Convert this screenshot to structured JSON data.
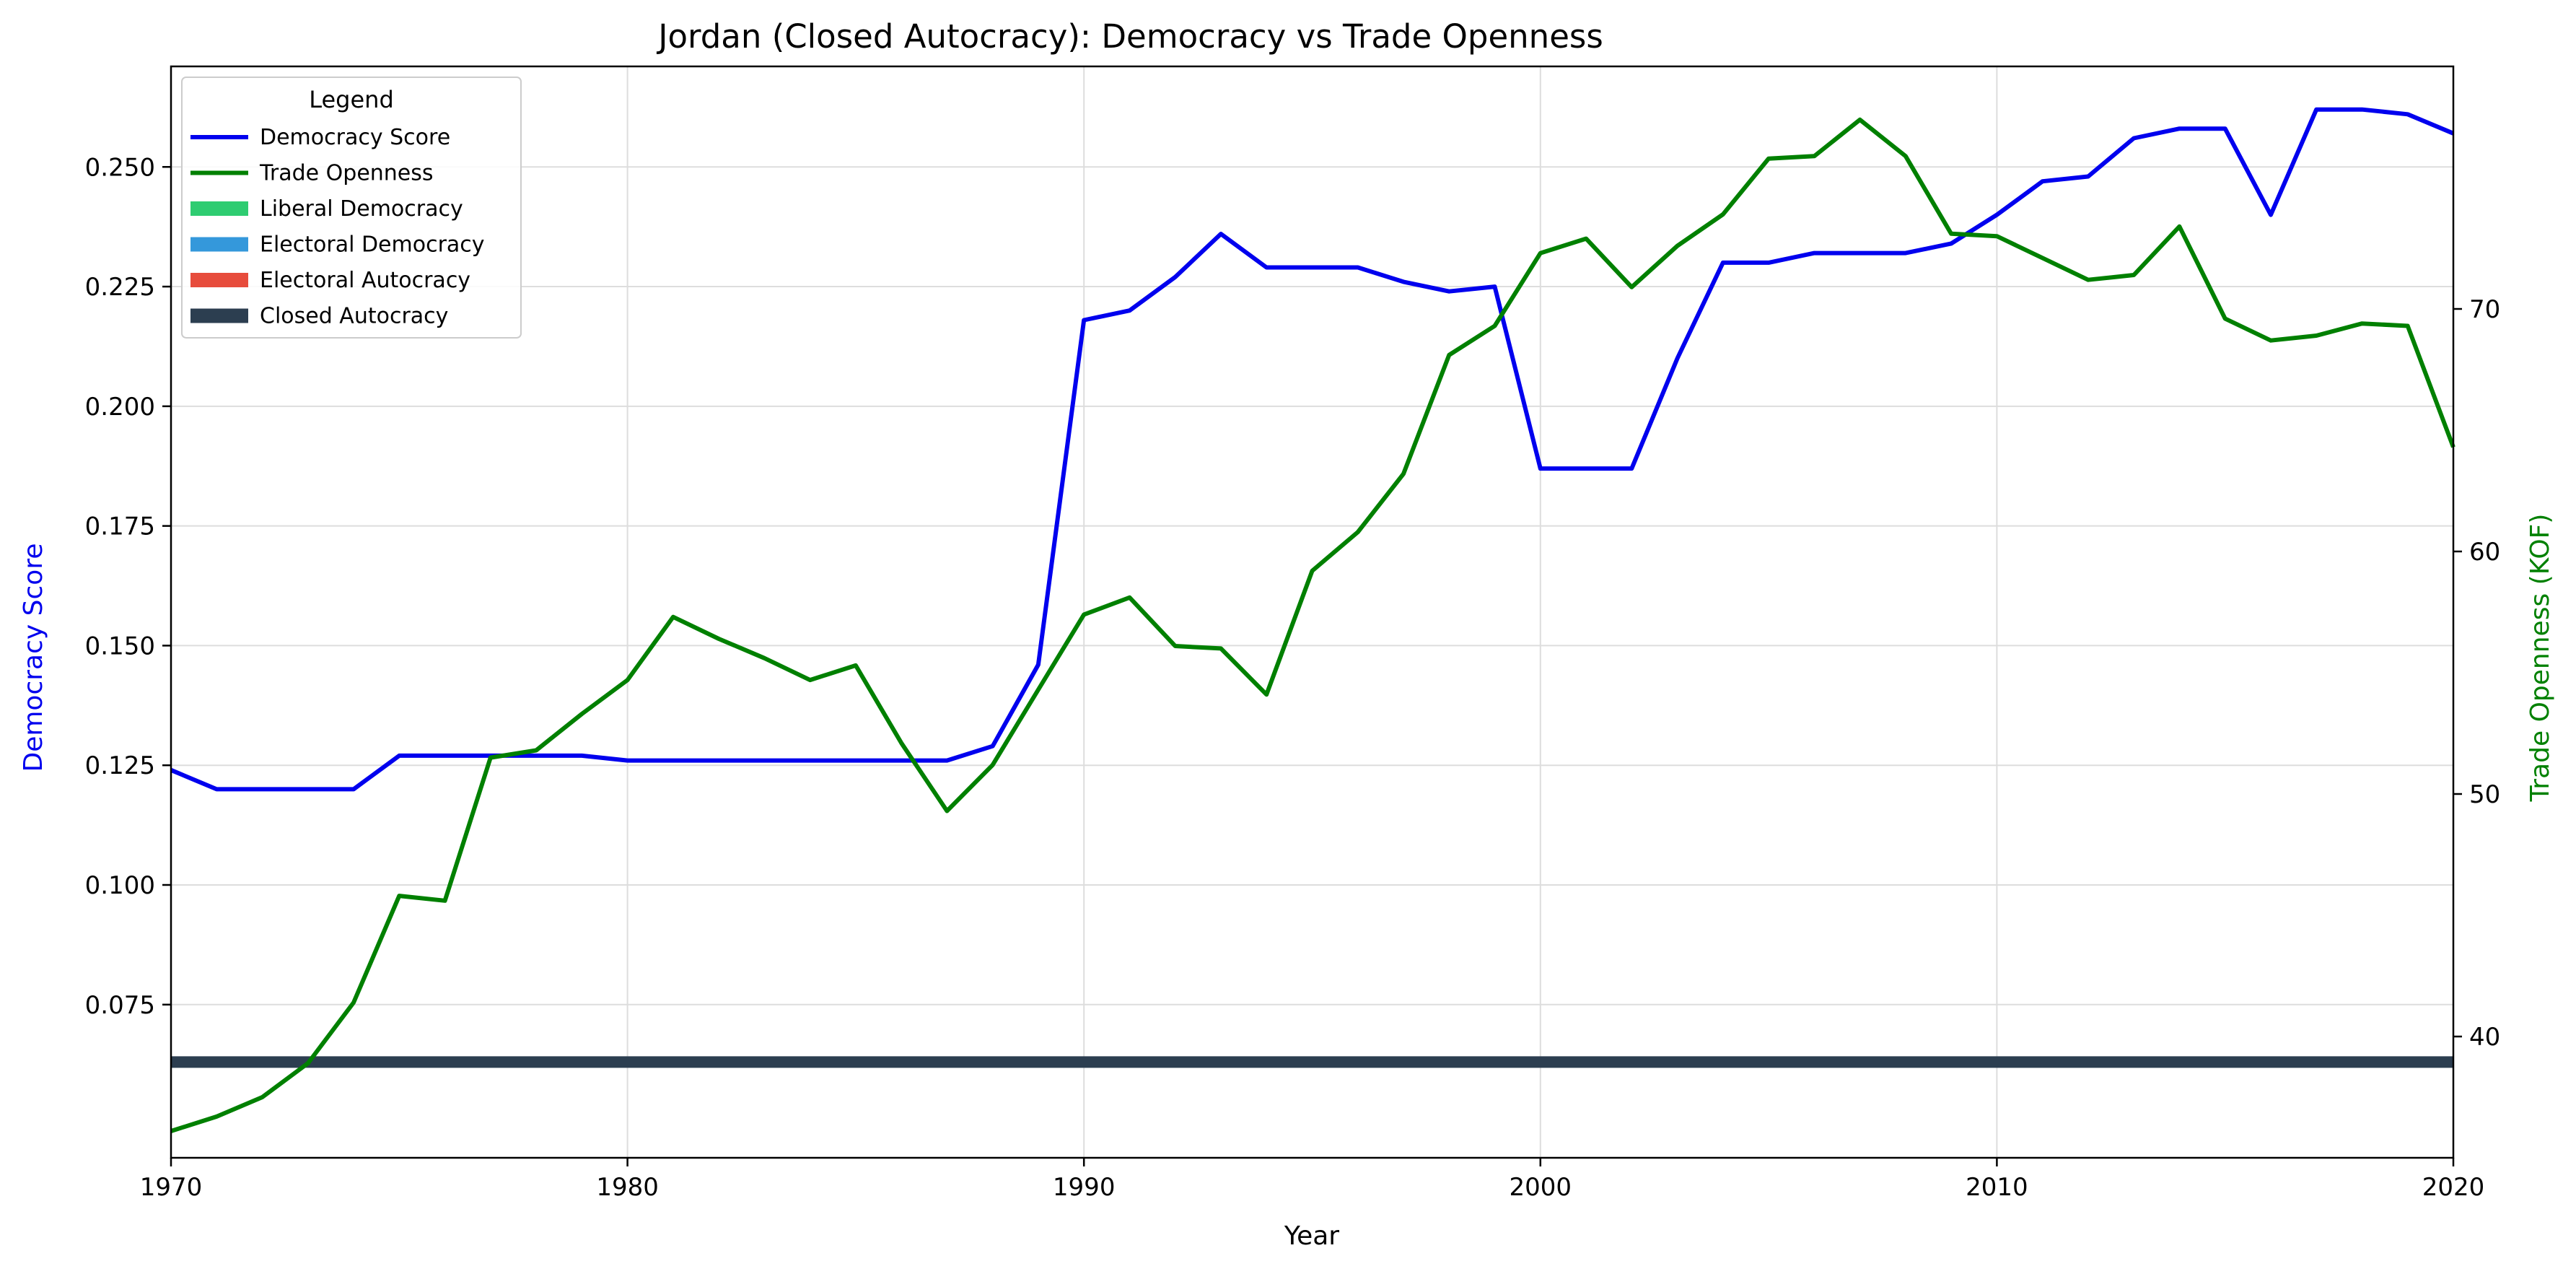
{
  "chart_data": {
    "type": "line",
    "title": "Jordan (Closed Autocracy): Democracy vs Trade Openness",
    "xlabel": "Year",
    "ylabel_left": "Democracy Score",
    "ylabel_right": "Trade Openness (KOF)",
    "xlim": [
      1970,
      2020
    ],
    "ylim_left": [
      0.043,
      0.271
    ],
    "ylim_right": [
      35,
      80
    ],
    "x_ticks": [
      1970,
      1980,
      1990,
      2000,
      2010,
      2020
    ],
    "y_left_ticks": [
      0.075,
      0.1,
      0.125,
      0.15,
      0.175,
      0.2,
      0.225,
      0.25
    ],
    "y_right_ticks": [
      40,
      50,
      60,
      70
    ],
    "grid": true,
    "legend_title": "Legend",
    "legend_position": "top-left",
    "legend": [
      {
        "label": "Democracy Score",
        "kind": "line",
        "color": "#0000ee"
      },
      {
        "label": "Trade Openness",
        "kind": "line",
        "color": "#008000"
      },
      {
        "label": "Liberal Democracy",
        "kind": "patch",
        "color": "#2ecc71"
      },
      {
        "label": "Electoral Democracy",
        "kind": "patch",
        "color": "#3498db"
      },
      {
        "label": "Electoral Autocracy",
        "kind": "patch",
        "color": "#e74c3c"
      },
      {
        "label": "Closed Autocracy",
        "kind": "patch",
        "color": "#2c3e50"
      }
    ],
    "regime_band": {
      "label": "Closed Autocracy",
      "from": 1970,
      "to": 2020,
      "y": 0.063,
      "color": "#2c3e50"
    },
    "x": [
      1970,
      1971,
      1972,
      1973,
      1974,
      1975,
      1976,
      1977,
      1978,
      1979,
      1980,
      1981,
      1982,
      1983,
      1984,
      1985,
      1986,
      1987,
      1988,
      1989,
      1990,
      1991,
      1992,
      1993,
      1994,
      1995,
      1996,
      1997,
      1998,
      1999,
      2000,
      2001,
      2002,
      2003,
      2004,
      2005,
      2006,
      2007,
      2008,
      2009,
      2010,
      2011,
      2012,
      2013,
      2014,
      2015,
      2016,
      2017,
      2018,
      2019,
      2020
    ],
    "series": [
      {
        "name": "Democracy Score",
        "axis": "left",
        "color": "#0000ee",
        "values": [
          0.124,
          0.12,
          0.12,
          0.12,
          0.12,
          0.127,
          0.127,
          0.127,
          0.127,
          0.127,
          0.126,
          0.126,
          0.126,
          0.126,
          0.126,
          0.126,
          0.126,
          0.126,
          0.129,
          0.146,
          0.218,
          0.22,
          0.227,
          0.236,
          0.229,
          0.229,
          0.229,
          0.226,
          0.224,
          0.225,
          0.187,
          0.187,
          0.187,
          0.21,
          0.23,
          0.23,
          0.232,
          0.232,
          0.232,
          0.234,
          0.24,
          0.247,
          0.248,
          0.256,
          0.258,
          0.258,
          0.24,
          0.262,
          0.262,
          0.261,
          0.257
        ]
      },
      {
        "name": "Trade Openness",
        "axis": "right",
        "color": "#008000",
        "values": [
          36.1,
          36.7,
          37.5,
          38.9,
          41.4,
          45.8,
          45.6,
          51.5,
          51.8,
          53.3,
          54.7,
          57.3,
          56.4,
          55.6,
          54.7,
          55.3,
          52.1,
          49.3,
          51.2,
          54.3,
          57.4,
          58.1,
          56.1,
          56.0,
          54.1,
          59.2,
          60.8,
          63.2,
          68.1,
          69.3,
          72.3,
          72.9,
          70.9,
          72.6,
          73.9,
          76.2,
          76.3,
          77.8,
          76.3,
          73.1,
          73.0,
          72.1,
          71.2,
          71.4,
          73.4,
          69.6,
          68.7,
          68.9,
          69.4,
          69.3,
          64.3
        ]
      }
    ]
  }
}
